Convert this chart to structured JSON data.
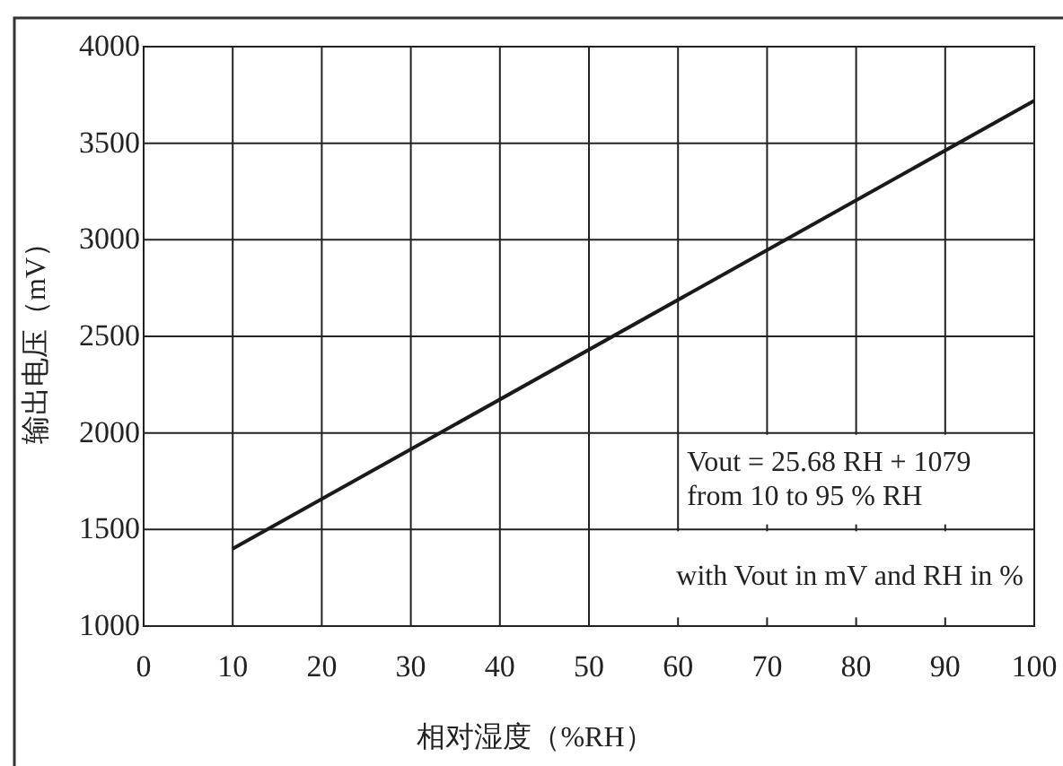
{
  "chart_data": {
    "type": "line",
    "xlabel": "相对湿度（%RH）",
    "ylabel": "输出电压（mV）",
    "x": [
      10,
      100
    ],
    "series": [
      {
        "color": "#1a1a1a",
        "values": [
          1400,
          3720
        ]
      }
    ],
    "xlim": [
      0,
      100
    ],
    "ylim": [
      1000,
      4000
    ],
    "xticks": [
      0,
      10,
      20,
      30,
      40,
      50,
      60,
      70,
      80,
      90,
      100
    ],
    "yticks": [
      1000,
      1500,
      2000,
      2500,
      3000,
      3500,
      4000
    ],
    "grid": true,
    "marker": "none",
    "line_style": "solid",
    "annotations": [
      "Vout = 25.68 RH + 1079\nfrom 10 to 95 % RH",
      "with Vout in mV and RH in %"
    ]
  }
}
